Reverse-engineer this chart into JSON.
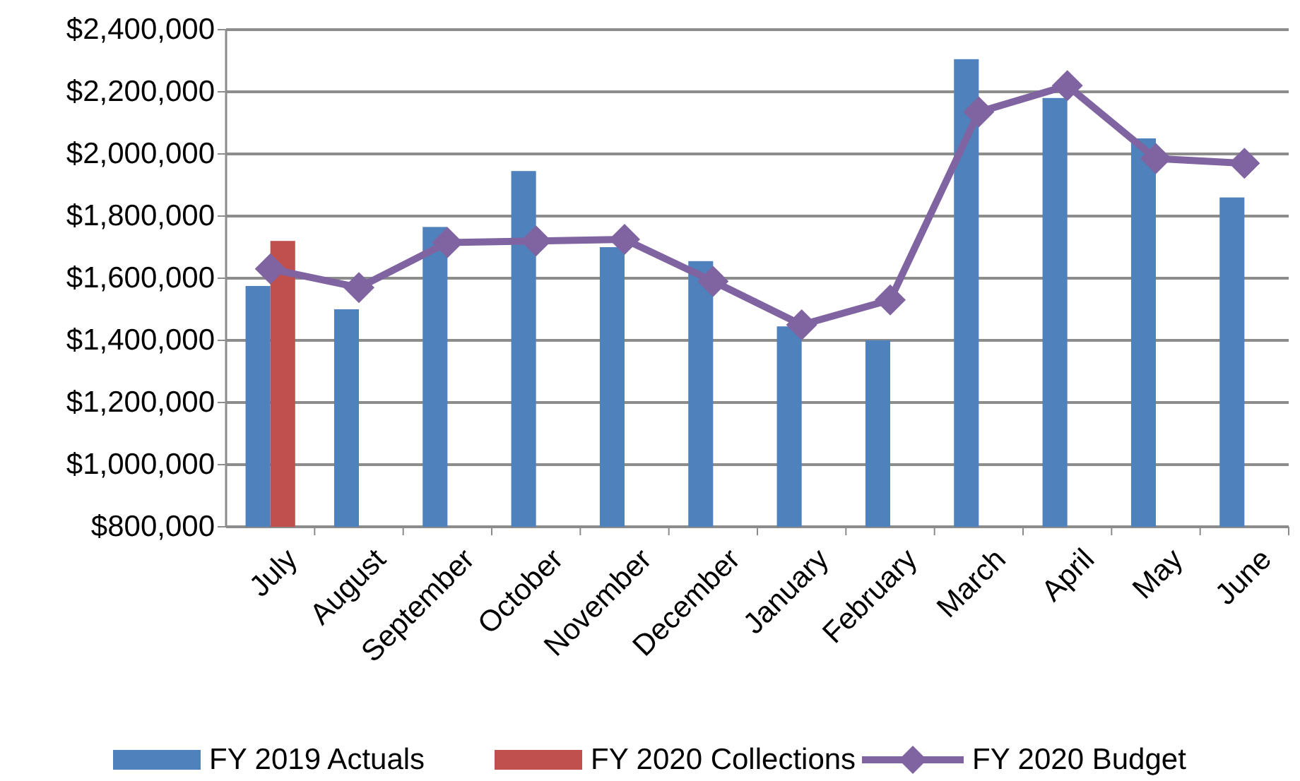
{
  "chart_data": {
    "type": "bar",
    "categories": [
      "July",
      "August",
      "September",
      "October",
      "November",
      "December",
      "January",
      "February",
      "March",
      "April",
      "May",
      "June"
    ],
    "series": [
      {
        "name": "FY 2019 Actuals",
        "color": "#4f81bd",
        "values": [
          1575000,
          1500000,
          1765000,
          1945000,
          1700000,
          1655000,
          1445000,
          1400000,
          2305000,
          2180000,
          2050000,
          1860000
        ]
      },
      {
        "name": "FY 2020 Collections",
        "color": "#c0504d",
        "values": [
          1720000,
          null,
          null,
          null,
          null,
          null,
          null,
          null,
          null,
          null,
          null,
          null
        ]
      },
      {
        "name": "FY 2020 Budget",
        "type": "line",
        "color": "#8064a2",
        "marker": "diamond",
        "values": [
          1630000,
          1570000,
          1715000,
          1720000,
          1725000,
          1590000,
          1450000,
          1530000,
          2135000,
          2220000,
          1985000,
          1970000
        ]
      }
    ],
    "ylim": [
      800000,
      2400000
    ],
    "yticks": [
      {
        "value": 800000,
        "label": "$800,000"
      },
      {
        "value": 1000000,
        "label": "$1,000,000"
      },
      {
        "value": 1200000,
        "label": "$1,200,000"
      },
      {
        "value": 1400000,
        "label": "$1,400,000"
      },
      {
        "value": 1600000,
        "label": "$1,600,000"
      },
      {
        "value": 1800000,
        "label": "$1,800,000"
      },
      {
        "value": 2000000,
        "label": "$2,000,000"
      },
      {
        "value": 2200000,
        "label": "$2,200,000"
      },
      {
        "value": 2400000,
        "label": "$2,400,000"
      }
    ],
    "grid": "y",
    "legend": "bottom"
  }
}
